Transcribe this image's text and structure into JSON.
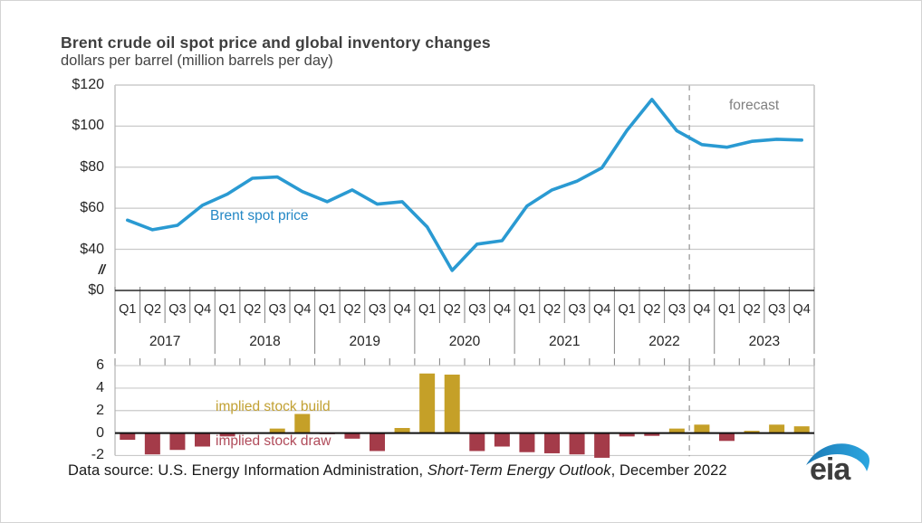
{
  "header": {
    "title": "Brent crude oil spot price and global inventory changes",
    "subtitle": "dollars per barrel (million barrels per day)"
  },
  "chart_data": [
    {
      "type": "line",
      "title": "Brent crude oil spot price",
      "ylabel": "dollars per barrel",
      "ylim": [
        0,
        120
      ],
      "axis_break_between": [
        0,
        40
      ],
      "yticks": [
        "$120",
        "$100",
        "$80",
        "$60",
        "$40",
        "//",
        "$0"
      ],
      "categories": [
        "Q1 2017",
        "Q2 2017",
        "Q3 2017",
        "Q4 2017",
        "Q1 2018",
        "Q2 2018",
        "Q3 2018",
        "Q4 2018",
        "Q1 2019",
        "Q2 2019",
        "Q3 2019",
        "Q4 2019",
        "Q1 2020",
        "Q2 2020",
        "Q3 2020",
        "Q4 2020",
        "Q1 2021",
        "Q2 2021",
        "Q3 2021",
        "Q4 2021",
        "Q1 2022",
        "Q2 2022",
        "Q3 2022",
        "Q4 2022",
        "Q1 2023",
        "Q2 2023",
        "Q3 2023",
        "Q4 2023"
      ],
      "series": [
        {
          "name": "Brent spot price",
          "values": [
            54.2,
            49.5,
            51.7,
            61.4,
            66.9,
            74.6,
            75.2,
            68.1,
            63.2,
            68.9,
            62.0,
            63.2,
            50.9,
            29.7,
            42.5,
            44.2,
            61.1,
            68.9,
            73.2,
            79.7,
            97.9,
            113.0,
            97.7,
            91.0,
            89.7,
            92.6,
            93.6,
            93.2
          ]
        }
      ],
      "line_label": "Brent spot price",
      "forecast_label": "forecast",
      "forecast_starts_after": "Q3 2022",
      "grid": true,
      "legend_position": "inline-annotation"
    },
    {
      "type": "bar",
      "title": "global inventory changes",
      "ylabel": "million barrels per day",
      "ylim": [
        -2,
        6
      ],
      "yticks": [
        "6",
        "4",
        "2",
        "0",
        "-2"
      ],
      "categories": [
        "Q1 2017",
        "Q2 2017",
        "Q3 2017",
        "Q4 2017",
        "Q1 2018",
        "Q2 2018",
        "Q3 2018",
        "Q4 2018",
        "Q1 2019",
        "Q2 2019",
        "Q3 2019",
        "Q4 2019",
        "Q1 2020",
        "Q2 2020",
        "Q3 2020",
        "Q4 2020",
        "Q1 2021",
        "Q2 2021",
        "Q3 2021",
        "Q4 2021",
        "Q1 2022",
        "Q2 2022",
        "Q3 2022",
        "Q4 2022",
        "Q1 2023",
        "Q2 2023",
        "Q3 2023",
        "Q4 2023"
      ],
      "values": [
        -0.6,
        -1.9,
        -1.5,
        -1.2,
        -0.3,
        0.0,
        0.4,
        1.7,
        -0.1,
        -0.5,
        -1.6,
        0.45,
        5.3,
        5.2,
        -1.6,
        -1.2,
        -1.7,
        -1.8,
        -1.9,
        -2.2,
        -0.3,
        -0.25,
        0.4,
        0.75,
        -0.7,
        0.2,
        0.75,
        0.6
      ],
      "build_label": "implied stock build",
      "draw_label": "implied stock draw",
      "grid": true
    }
  ],
  "x_axis": {
    "years": [
      "2017",
      "2018",
      "2019",
      "2020",
      "2021",
      "2022",
      "2023"
    ],
    "quarter_pattern": [
      "Q1",
      "Q2",
      "Q3",
      "Q4"
    ]
  },
  "footer": {
    "prefix": "Data source: U.S. Energy Information Administration, ",
    "italic": "Short-Term Energy Outlook",
    "suffix": ", December 2022"
  },
  "logo": {
    "text": "eia"
  },
  "colors": {
    "line": "#2a9ad2",
    "line_label": "#2387c5",
    "build": "#c5a028",
    "draw": "#a43b49",
    "forecast_text": "#808080",
    "dashed_line": "#9b9b9b",
    "grid": "#c9c9c9",
    "axis_dark": "#1c1c1c",
    "swoosh": "#2196d3"
  }
}
